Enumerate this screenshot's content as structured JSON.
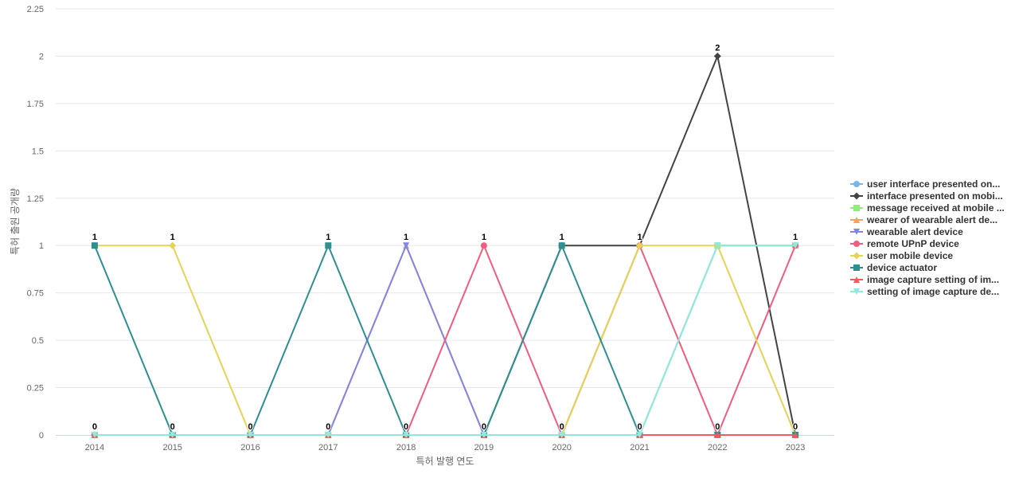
{
  "chart_data": {
    "type": "line",
    "title": "",
    "xlabel": "특허 발행 연도",
    "ylabel": "특허 출원 공개량",
    "ylim": [
      0,
      2.25
    ],
    "yticks": [
      "0",
      "0.25",
      "0.5",
      "0.75",
      "1",
      "1.25",
      "1.5",
      "1.75",
      "2",
      "2.25"
    ],
    "categories": [
      "2014",
      "2015",
      "2016",
      "2017",
      "2018",
      "2019",
      "2020",
      "2021",
      "2022",
      "2023"
    ],
    "grid": "horizontal",
    "legend_position": "right",
    "series": [
      {
        "name": "user interface presented on...",
        "color": "#7cb5ec",
        "marker": "circle",
        "values": [
          0,
          0,
          0,
          0,
          0,
          0,
          0,
          0,
          1,
          1
        ]
      },
      {
        "name": "interface presented on mobi...",
        "color": "#434348",
        "marker": "diamond",
        "values": [
          0,
          0,
          0,
          0,
          0,
          0,
          1,
          1,
          2,
          0
        ]
      },
      {
        "name": "message received at mobile ...",
        "color": "#90ed7d",
        "marker": "square",
        "values": [
          0,
          0,
          0,
          0,
          0,
          0,
          0,
          0,
          1,
          1
        ]
      },
      {
        "name": "wearer of wearable alert de...",
        "color": "#f7a35c",
        "marker": "triangle",
        "values": [
          0,
          0,
          0,
          0,
          1,
          0,
          0,
          0,
          0,
          0
        ]
      },
      {
        "name": "wearable alert device",
        "color": "#8085e9",
        "marker": "triangle-down",
        "values": [
          0,
          0,
          0,
          0,
          1,
          0,
          0,
          0,
          0,
          0
        ]
      },
      {
        "name": "remote UPnP device",
        "color": "#f15c80",
        "marker": "circle",
        "values": [
          0,
          0,
          0,
          0,
          0,
          1,
          0,
          1,
          0,
          1
        ]
      },
      {
        "name": "user mobile device",
        "color": "#e4d354",
        "marker": "diamond",
        "values": [
          1,
          1,
          0,
          0,
          0,
          0,
          0,
          1,
          1,
          0
        ]
      },
      {
        "name": "device actuator",
        "color": "#2b908f",
        "marker": "square",
        "values": [
          1,
          0,
          0,
          1,
          0,
          0,
          1,
          0,
          0,
          0
        ]
      },
      {
        "name": "image capture setting of im...",
        "color": "#f45b5b",
        "marker": "triangle",
        "values": [
          0,
          0,
          0,
          0,
          0,
          0,
          0,
          0,
          0,
          0
        ]
      },
      {
        "name": "setting of image capture de...",
        "color": "#91e8e1",
        "marker": "triangle-down",
        "values": [
          0,
          0,
          0,
          0,
          0,
          0,
          0,
          0,
          1,
          1
        ]
      }
    ],
    "data_labels": [
      "1",
      "1",
      "0",
      "1",
      "1",
      "1",
      "1",
      "1",
      "2",
      "1"
    ],
    "data_labels_zero": [
      "0",
      "0",
      "0",
      "0",
      "0",
      "0",
      "0",
      "0",
      "0",
      "0"
    ]
  }
}
